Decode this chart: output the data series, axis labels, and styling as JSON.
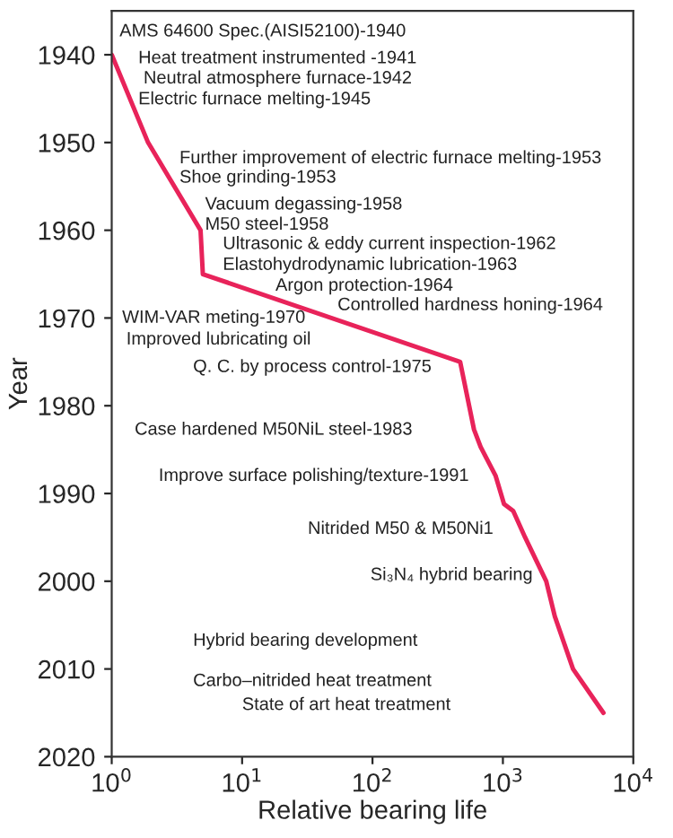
{
  "chart_data": {
    "type": "line",
    "xlabel": "Relative bearing life",
    "ylabel": "Year",
    "log": "x",
    "xlim": [
      1,
      10000
    ],
    "xticks": [
      {
        "value": 1,
        "label": "10$^{0}$"
      },
      {
        "value": 10,
        "label": "10$^{1}$"
      },
      {
        "value": 100,
        "label": "10$^{2}$"
      },
      {
        "value": 1000,
        "label": "10$^{3}$"
      },
      {
        "value": 10000,
        "label": "10$^{4}$"
      }
    ],
    "ylim": [
      2020,
      1935
    ],
    "yticks": [
      1940,
      1950,
      1960,
      1970,
      1980,
      1990,
      2000,
      2010,
      2020
    ],
    "grid": false,
    "marker": "none",
    "line_style": "solid",
    "series": [
      {
        "color": "#e8235a",
        "x": [
          1,
          1.9,
          4.8,
          5,
          470,
          600,
          675,
          880,
          1020,
          1200,
          1480,
          2150,
          2500,
          3450,
          5900
        ],
        "values": [
          1940,
          1950,
          1960,
          1965,
          1975,
          1982.7,
          1984.7,
          1988,
          1991.2,
          1992,
          1995,
          2000,
          2004,
          2010,
          2015
        ]
      }
    ],
    "annotations": [
      "AMS 64600 Spec.(AISI52100)-1940",
      "Heat treatment instrumented -1941",
      "Neutral atmosphere furnace-1942",
      "Electric furnace melting-1945",
      "Further improvement of electric furnace melting-1953",
      "Shoe grinding-1953",
      "Vacuum degassing-1958",
      "M50 steel-1958",
      "Ultrasonic & eddy current inspection-1962",
      "Elastohydrodynamic lubrication-1963",
      "Argon protection-1964",
      "Controlled hardness honing-1964",
      "WIM-VAR meting-1970",
      "Improved lubricating oil",
      "Q. C. by process control-1975",
      "Case hardened M50NiL steel-1983",
      "Improve surface polishing/texture-1991",
      "Nitrided M50 & M50Ni1",
      "Si₃N₄ hybrid bearing",
      "Hybrid bearing development",
      "Carbo–nitrided heat treatment",
      "State of art heat treatment"
    ]
  }
}
